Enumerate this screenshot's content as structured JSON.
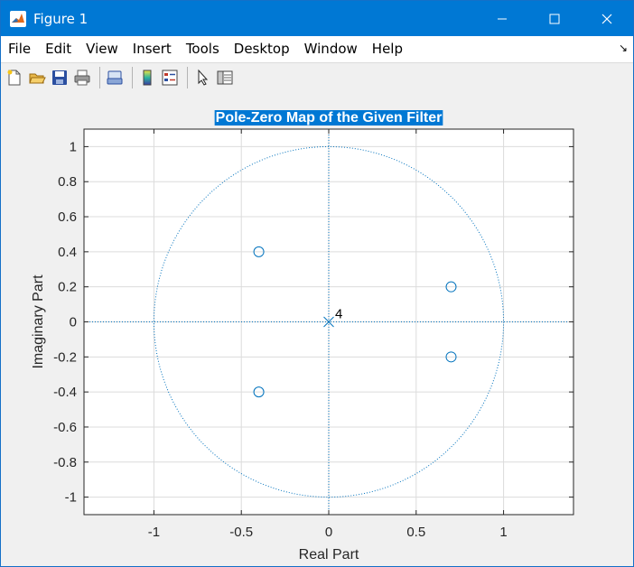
{
  "window": {
    "title": "Figure 1",
    "controls": {
      "minimize": "—",
      "maximize": "☐",
      "close": "✕"
    }
  },
  "menu": [
    "File",
    "Edit",
    "View",
    "Insert",
    "Tools",
    "Desktop",
    "Window",
    "Help"
  ],
  "menu_dock_arrow": "↘",
  "toolbar": {
    "icons": [
      "new-figure-icon",
      "open-file-icon",
      "save-icon",
      "print-icon",
      "print-preview-icon",
      "colorbar-icon",
      "legend-icon",
      "pointer-icon",
      "property-inspector-icon"
    ]
  },
  "colors": {
    "titlebar": "#0078d4",
    "marker": "#0072bd",
    "grid": "#dcdcdc",
    "title_highlight": "#0078d4"
  },
  "chart_data": {
    "type": "scatter",
    "title": "Pole-Zero Map of the Given Filter",
    "xlabel": "Real Part",
    "ylabel": "Imaginary Part",
    "xlim": [
      -1.4,
      1.4
    ],
    "ylim": [
      -1.1,
      1.1
    ],
    "xticks": [
      -1,
      -0.5,
      0,
      0.5,
      1
    ],
    "xticklabels": [
      "-1",
      "-0.5",
      "0",
      "0.5",
      "1"
    ],
    "yticks": [
      1,
      0.8,
      0.6,
      0.4,
      0.2,
      0,
      -0.2,
      -0.4,
      -0.6,
      -0.8,
      -1
    ],
    "yticklabels": [
      "1",
      "0.8",
      "0.6",
      "0.4",
      "0.2",
      "0",
      "-0.2",
      "-0.4",
      "-0.6",
      "-0.8",
      "-1"
    ],
    "grid": true,
    "unit_circle": true,
    "zeros": [
      {
        "x": -0.4,
        "y": 0.4
      },
      {
        "x": -0.4,
        "y": -0.4
      },
      {
        "x": 0.7,
        "y": 0.2
      },
      {
        "x": 0.7,
        "y": -0.2
      }
    ],
    "poles": [
      {
        "x": 0,
        "y": 0,
        "multiplicity": "4"
      }
    ]
  }
}
